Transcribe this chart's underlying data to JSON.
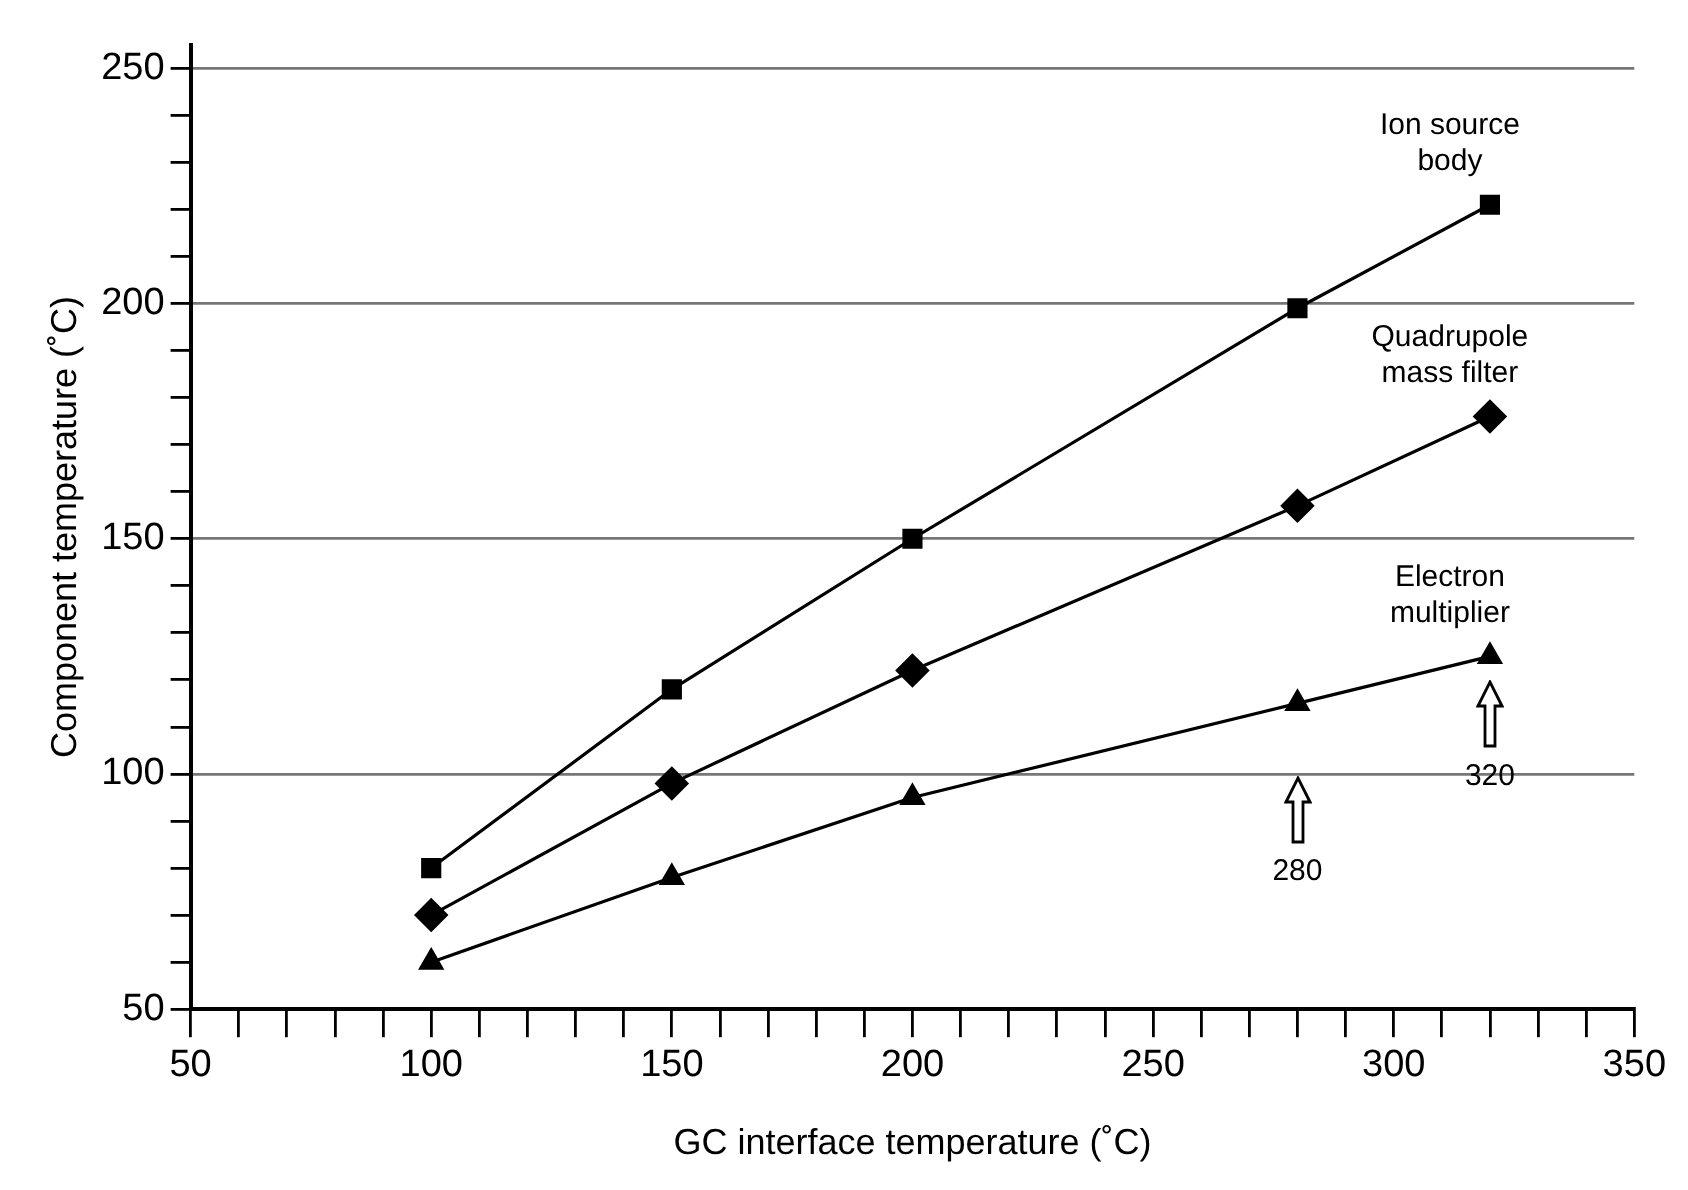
{
  "chart_data": {
    "type": "line",
    "xlabel": "GC interface temperature (˚C)",
    "ylabel": "Component temperature (˚C)",
    "x": [
      100,
      150,
      200,
      280,
      320
    ],
    "series": [
      {
        "name": "Ion source body",
        "color": "#000000",
        "marker": "square",
        "values": [
          80,
          118,
          150,
          199,
          221
        ]
      },
      {
        "name": "Quadrupole mass filter",
        "color": "#000000",
        "marker": "diamond",
        "values": [
          70,
          98,
          122,
          157,
          176
        ]
      },
      {
        "name": "Electron multiplier",
        "color": "#000000",
        "marker": "triangle",
        "values": [
          60,
          78,
          95,
          115,
          125
        ]
      }
    ],
    "xlim": [
      50,
      350
    ],
    "ylim": [
      50,
      255
    ],
    "xticks": [
      50,
      {
        "value": 60,
        "label": null
      },
      {
        "value": 70,
        "label": null
      },
      {
        "value": 80,
        "label": null
      },
      {
        "value": 90,
        "label": null
      },
      100,
      {
        "value": 110,
        "label": null
      },
      {
        "value": 120,
        "label": null
      },
      {
        "value": 130,
        "label": null
      },
      {
        "value": 140,
        "label": null
      },
      150,
      {
        "value": 160,
        "label": null
      },
      {
        "value": 170,
        "label": null
      },
      {
        "value": 180,
        "label": null
      },
      {
        "value": 190,
        "label": null
      },
      200,
      {
        "value": 210,
        "label": null
      },
      {
        "value": 220,
        "label": null
      },
      {
        "value": 230,
        "label": null
      },
      {
        "value": 240,
        "label": null
      },
      250,
      {
        "value": 260,
        "label": null
      },
      {
        "value": 270,
        "label": null
      },
      {
        "value": 280,
        "label": null
      },
      {
        "value": 290,
        "label": null
      },
      300,
      {
        "value": 310,
        "label": null
      },
      {
        "value": 320,
        "label": null
      },
      {
        "value": 330,
        "label": null
      },
      {
        "value": 340,
        "label": null
      },
      350
    ],
    "yticks": [
      50,
      {
        "value": 60,
        "label": null
      },
      {
        "value": 70,
        "label": null
      },
      {
        "value": 80,
        "label": null
      },
      {
        "value": 90,
        "label": null
      },
      100,
      {
        "value": 110,
        "label": null
      },
      {
        "value": 120,
        "label": null
      },
      {
        "value": 130,
        "label": null
      },
      {
        "value": 140,
        "label": null
      },
      150,
      {
        "value": 160,
        "label": null
      },
      {
        "value": 170,
        "label": null
      },
      {
        "value": 180,
        "label": null
      },
      {
        "value": 190,
        "label": null
      },
      200,
      {
        "value": 210,
        "label": null
      },
      {
        "value": 220,
        "label": null
      },
      {
        "value": 230,
        "label": null
      },
      {
        "value": 240,
        "label": null
      },
      250
    ],
    "grid": "y",
    "legend": false,
    "line_style": "solid",
    "annotations": [
      "280",
      "320"
    ]
  }
}
